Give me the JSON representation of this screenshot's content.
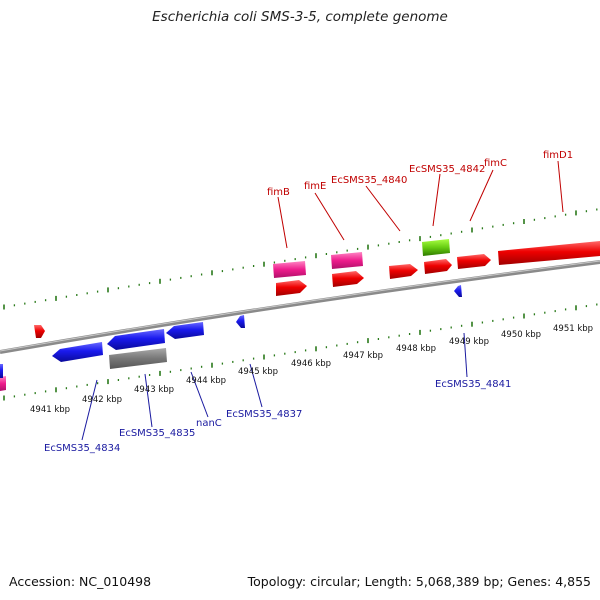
{
  "title": "Escherichia coli SMS-3-5, complete genome",
  "accession": "Accession: NC_010498",
  "summary": "Topology: circular; Length: 5,068,389 bp; Genes: 4,855",
  "kbp_labels": [
    "4941 kbp",
    "4942 kbp",
    "4943 kbp",
    "4944 kbp",
    "4945 kbp",
    "4946 kbp",
    "4947 kbp",
    "4948 kbp",
    "4949 kbp",
    "4950 kbp",
    "4951 kbp"
  ],
  "top_labels": [
    "fimB",
    "fimE",
    "EcSMS35_4840",
    "EcSMS35_4842",
    "fimC",
    "fimD1"
  ],
  "bottom_labels": [
    "EcSMS35_4834",
    "EcSMS35_4835",
    "nanC",
    "EcSMS35_4837",
    "EcSMS35_4841"
  ],
  "colors": {
    "forward_gene": "#ee0000",
    "reverse_gene": "#1a1aee",
    "rna_gene": "#ee1c8c",
    "pseudo_gene": "#777777",
    "green_feature": "#44aa00",
    "tick": "#2a7a1a",
    "backbone": "#8a8a8a",
    "top_label": "#c00000",
    "bottom_label": "#1a1aa0"
  }
}
